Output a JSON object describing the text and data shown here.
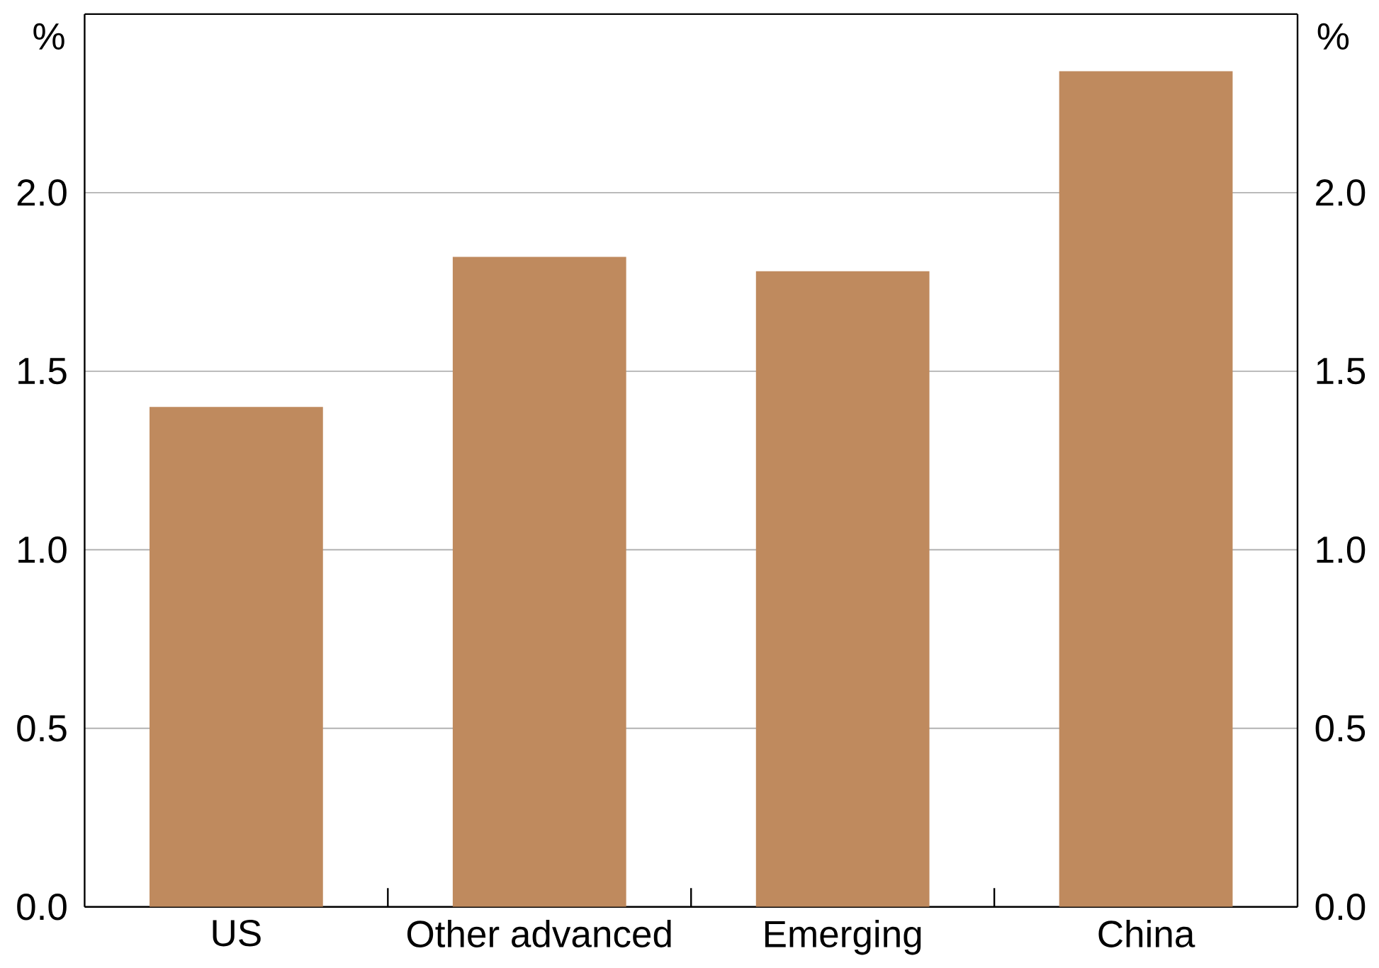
{
  "chart_data": {
    "type": "bar",
    "ylabel": "%",
    "y2label": "%",
    "categories": [
      "US",
      "Other advanced",
      "Emerging",
      "China"
    ],
    "values": [
      1.4,
      1.82,
      1.78,
      2.34
    ],
    "color": "#bf8a5e",
    "ylim": [
      0,
      2.5
    ],
    "yticks": [
      {
        "value": 0,
        "label": "0.0"
      },
      {
        "value": 0.5,
        "label": "0.5"
      },
      {
        "value": 1,
        "label": "1.0"
      },
      {
        "value": 1.5,
        "label": "1.5"
      },
      {
        "value": 2,
        "label": "2.0"
      }
    ],
    "y2lim": [
      0,
      2.5
    ],
    "y2ticks": [
      {
        "value": 0,
        "label": "0.0"
      },
      {
        "value": 0.5,
        "label": "0.5"
      },
      {
        "value": 1,
        "label": "1.0"
      },
      {
        "value": 1.5,
        "label": "1.5"
      },
      {
        "value": 2,
        "label": "2.0"
      }
    ],
    "grid": "y"
  }
}
